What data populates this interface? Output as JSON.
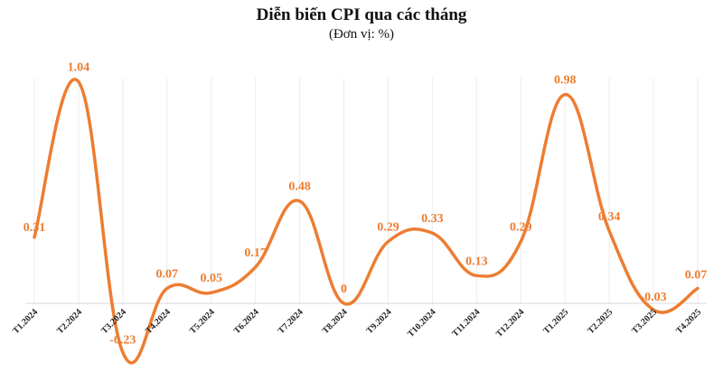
{
  "colors": {
    "line": "#ED7D31",
    "grid": "#ECECEC",
    "axis": "#D9D9D9"
  },
  "chart_data": {
    "type": "line",
    "title": "Diễn biến CPI qua các tháng",
    "subtitle": "(Đơn vị: %)",
    "xlabel": "",
    "ylabel": "",
    "categories": [
      "T1.2024",
      "T2.2024",
      "T3.2024",
      "T4.2024",
      "T5.2024",
      "T6.2024",
      "T7.2024",
      "T8.2024",
      "T9.2024",
      "T10.2024",
      "T11.2024",
      "T12.2024",
      "T1.2025",
      "T2.2025",
      "T3.2025",
      "T4.2025"
    ],
    "series": [
      {
        "values": [
          0.31,
          1.04,
          -0.23,
          0.07,
          0.05,
          0.17,
          0.48,
          0,
          0.29,
          0.33,
          0.13,
          0.29,
          0.98,
          0.34,
          -0.03,
          0.07
        ],
        "labels": [
          "0.31",
          "1.04",
          "-0.23",
          "0.07",
          "0.05",
          "0.17",
          "0.48",
          "0",
          "0.29",
          "0.33",
          "0.13",
          "0.29",
          "0.98",
          "0.34",
          "-0.03",
          "0.07"
        ]
      }
    ],
    "ylim": [
      -0.3,
      1.1
    ],
    "grid": "vertical",
    "smooth": true
  }
}
